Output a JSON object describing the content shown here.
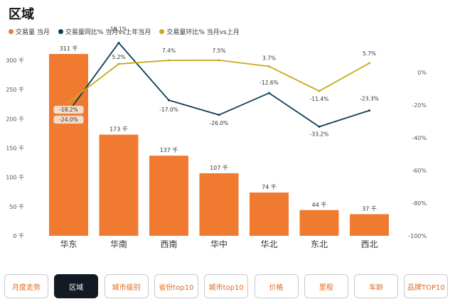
{
  "page": {
    "title": "区域"
  },
  "colors": {
    "bar": "#f07a30",
    "yoy": "#0f3d55",
    "mom": "#c8a91e",
    "axis": "#555555",
    "badge_bg": "#f7dccb"
  },
  "chart_data": {
    "type": "bar+line",
    "categories": [
      "华东",
      "华南",
      "西南",
      "华中",
      "华北",
      "东北",
      "西北"
    ],
    "series": [
      {
        "name": "交易量 当月",
        "type": "bar",
        "axis": "left",
        "values": [
          311,
          173,
          137,
          107,
          74,
          44,
          37
        ],
        "labels": [
          "311 千",
          "173 千",
          "137 千",
          "107 千",
          "74 千",
          "44 千",
          "37 千"
        ]
      },
      {
        "name": "交易量同比% 当月vs上年当月",
        "type": "line",
        "axis": "right",
        "values": [
          -24.0,
          18.1,
          -17.0,
          -26.0,
          -12.6,
          -33.2,
          -23.3
        ],
        "labels": [
          "-24.0%",
          "18.1%",
          "-17.0%",
          "-26.0%",
          "-12.6%",
          "-33.2%",
          "-23.3%"
        ]
      },
      {
        "name": "交易量环比% 当月vs上月",
        "type": "line",
        "axis": "right",
        "values": [
          -18.2,
          5.2,
          7.4,
          7.5,
          3.7,
          -11.4,
          5.7
        ],
        "labels": [
          "-18.2%",
          "5.2%",
          "7.4%",
          "7.5%",
          "3.7%",
          "-11.4%",
          "5.7%"
        ]
      }
    ],
    "left_axis": {
      "ylim": [
        0,
        320
      ],
      "ticks": [
        "0 千",
        "50 千",
        "100 千",
        "150 千",
        "200 千",
        "250 千",
        "300 千"
      ]
    },
    "right_axis": {
      "ylim": [
        -100,
        20
      ],
      "ticks": [
        "0%",
        "-20%",
        "-40%",
        "-60%",
        "-80%",
        "-100%"
      ]
    }
  },
  "tabs": [
    {
      "label": "月度走势",
      "active": false
    },
    {
      "label": "区域",
      "active": true
    },
    {
      "label": "城市级别",
      "active": false
    },
    {
      "label": "省份top10",
      "active": false
    },
    {
      "label": "城市top10",
      "active": false
    },
    {
      "label": "价格",
      "active": false
    },
    {
      "label": "里程",
      "active": false
    },
    {
      "label": "车龄",
      "active": false
    },
    {
      "label": "品牌TOP10",
      "active": false
    }
  ]
}
